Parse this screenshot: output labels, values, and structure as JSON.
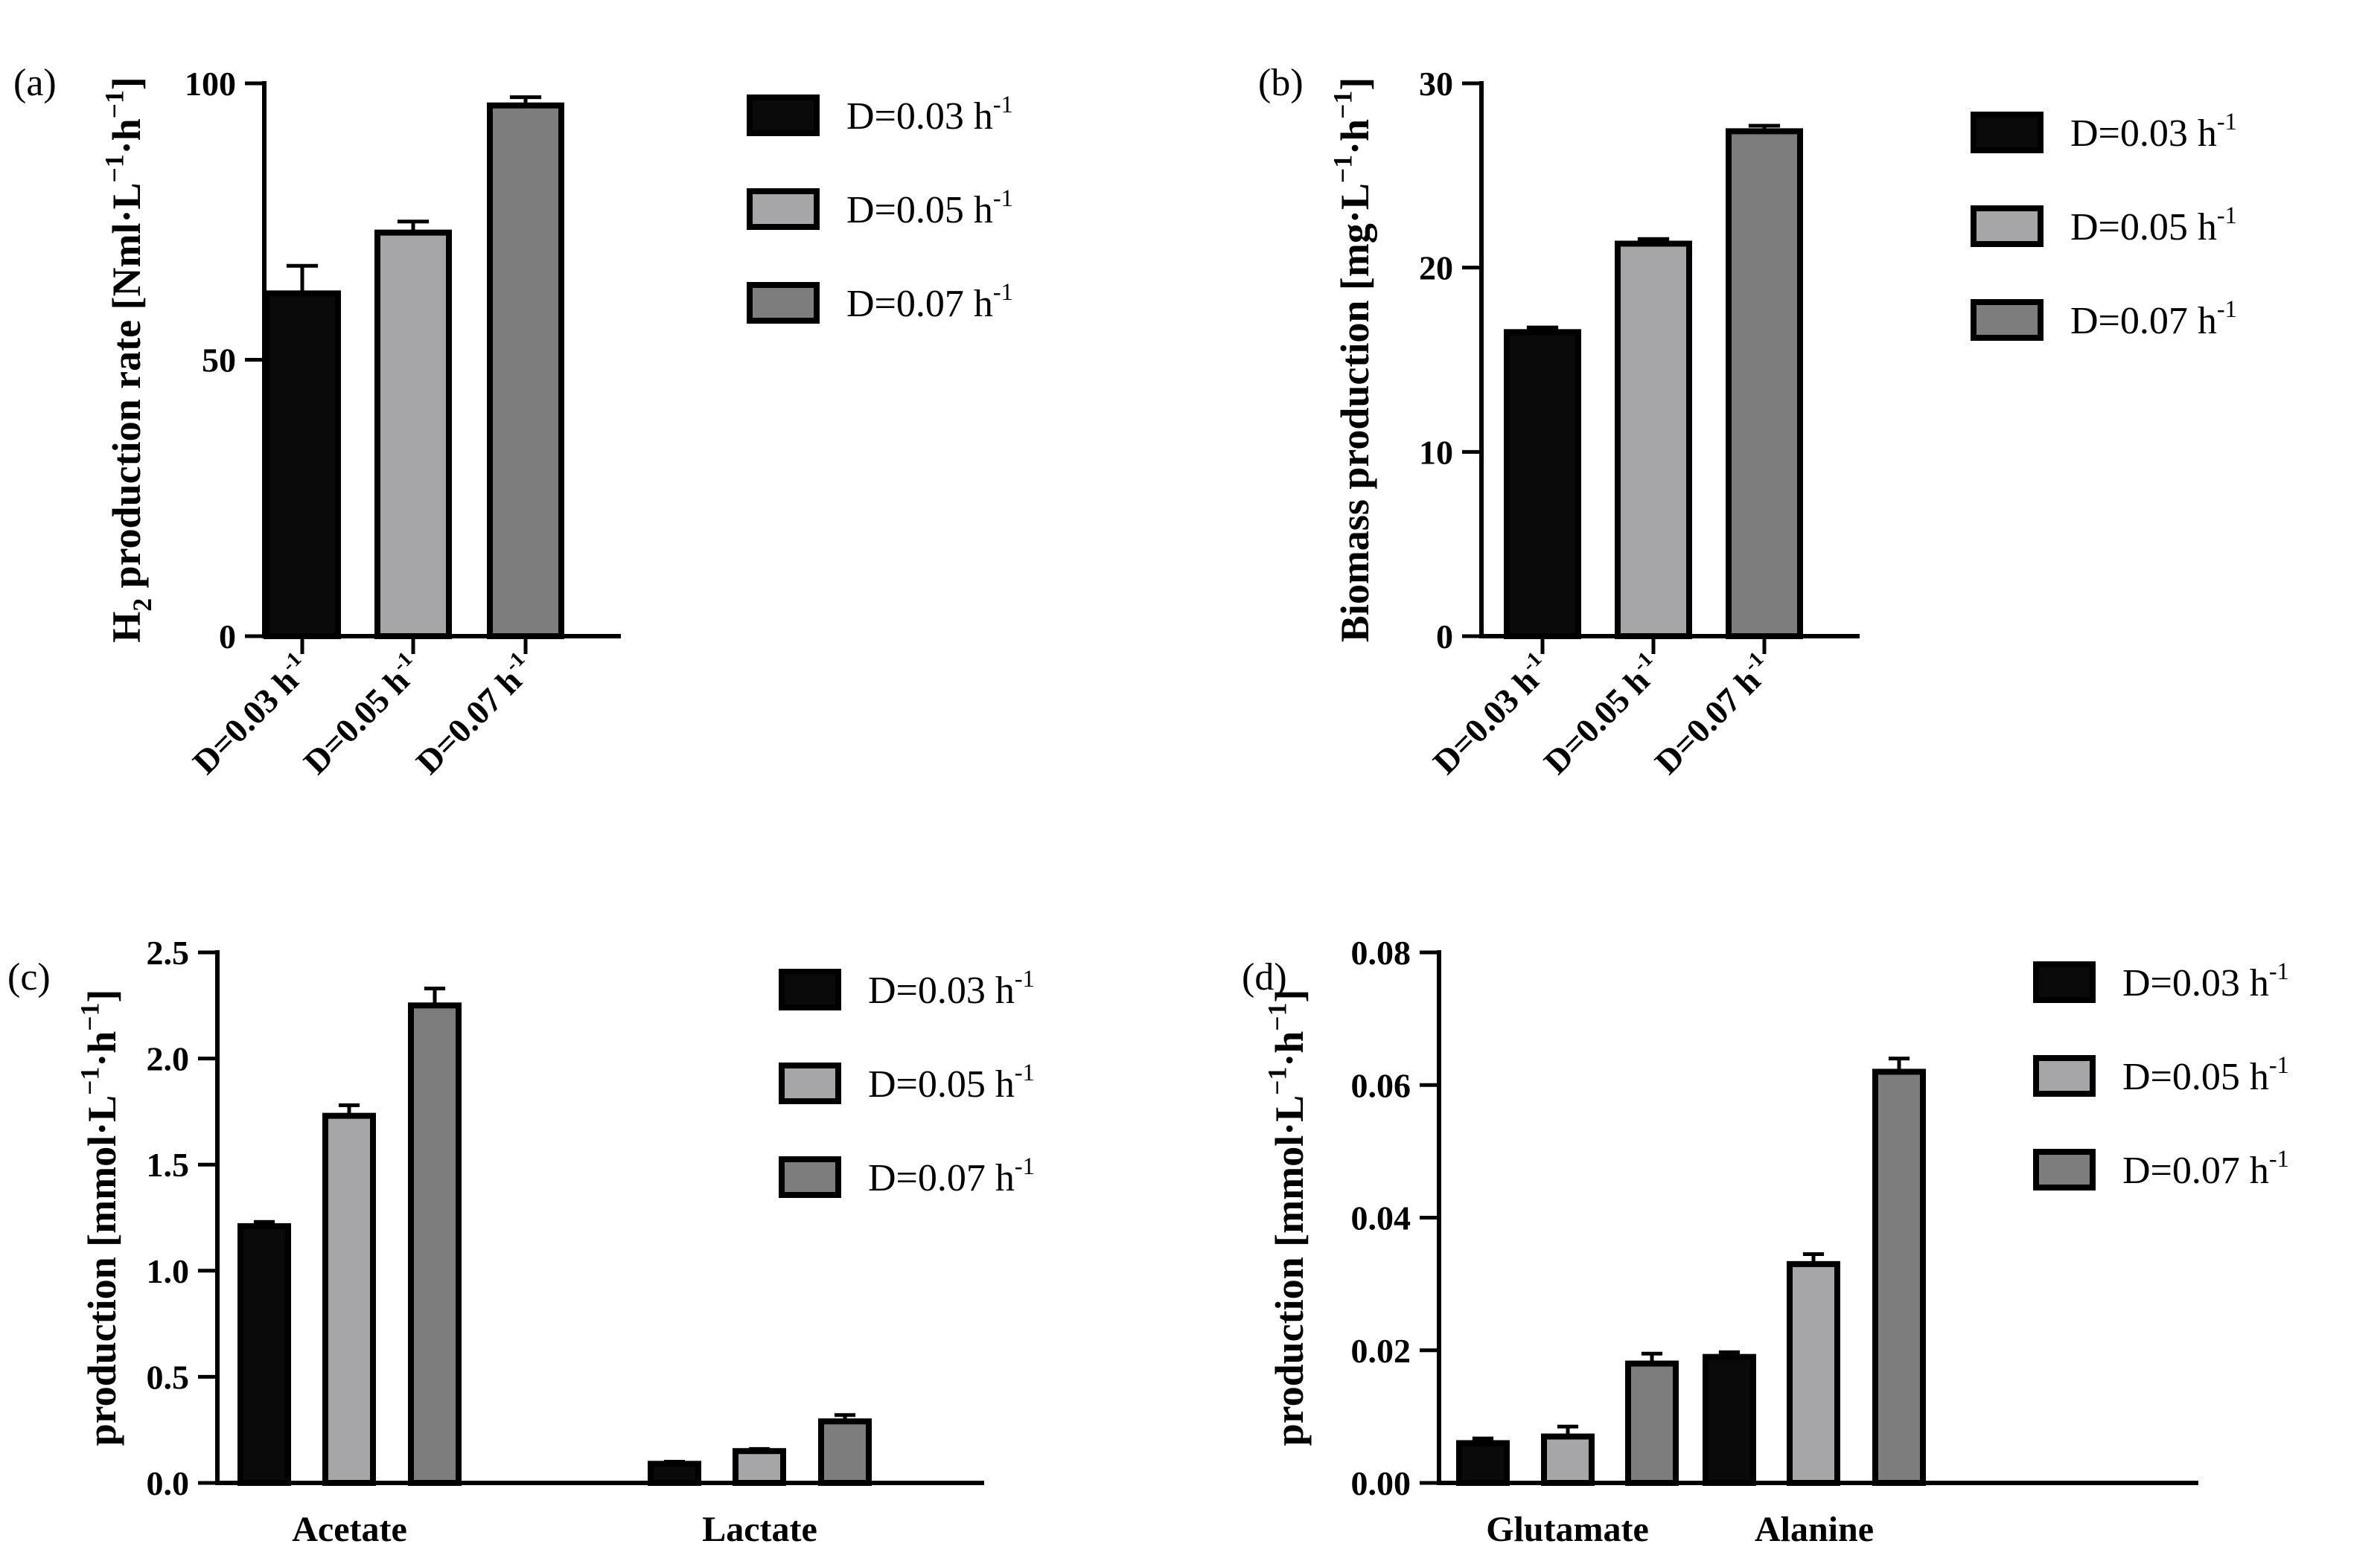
{
  "panels": [
    {
      "id": "a",
      "panel_label": "(a)",
      "legend": [
        {
          "base": "D=0.03 h",
          "sup": "-1",
          "color": "#0a0a0a"
        },
        {
          "base": "D=0.05 h",
          "sup": "-1",
          "color": "#a6a6a8"
        },
        {
          "base": "D=0.07 h",
          "sup": "-1",
          "color": "#7d7d7d"
        }
      ]
    },
    {
      "id": "b",
      "panel_label": "(b)",
      "legend": [
        {
          "base": "D=0.03 h",
          "sup": "-1",
          "color": "#0a0a0a"
        },
        {
          "base": "D=0.05 h",
          "sup": "-1",
          "color": "#a6a6a8"
        },
        {
          "base": "D=0.07 h",
          "sup": "-1",
          "color": "#7d7d7d"
        }
      ]
    },
    {
      "id": "c",
      "panel_label": "(c)",
      "legend": [
        {
          "base": "D=0.03 h",
          "sup": "-1",
          "color": "#0a0a0a"
        },
        {
          "base": "D=0.05 h",
          "sup": "-1",
          "color": "#a6a6a8"
        },
        {
          "base": "D=0.07 h",
          "sup": "-1",
          "color": "#7d7d7d"
        }
      ]
    },
    {
      "id": "d",
      "panel_label": "(d)",
      "legend": [
        {
          "base": "D=0.03 h",
          "sup": "-1",
          "color": "#0a0a0a"
        },
        {
          "base": "D=0.05 h",
          "sup": "-1",
          "color": "#a6a6a8"
        },
        {
          "base": "D=0.07 h",
          "sup": "-1",
          "color": "#7d7d7d"
        }
      ]
    }
  ],
  "chart_data": [
    {
      "type": "bar",
      "panel": "a",
      "ylabel": "H2 production rate [Nml·L-1·h-1]",
      "ylabel_parts": [
        {
          "t": "H"
        },
        {
          "t": "2",
          "s": "sub"
        },
        {
          "t": " production rate [Nml·L"
        },
        {
          "t": "−1",
          "s": "sup"
        },
        {
          "t": "·h"
        },
        {
          "t": "−1",
          "s": "sup"
        },
        {
          "t": "]"
        }
      ],
      "categories": [
        "D=0.03 h-1",
        "D=0.05 h-1",
        "D=0.07 h-1"
      ],
      "tick_labels": [
        {
          "base": "D=0.03 h",
          "sup": "-1"
        },
        {
          "base": "D=0.05 h",
          "sup": "-1"
        },
        {
          "base": "D=0.07 h",
          "sup": "-1"
        }
      ],
      "values": [
        62,
        73,
        96
      ],
      "errors": [
        5,
        2,
        1.5
      ],
      "ylim": [
        0,
        100
      ],
      "yticks": [
        0,
        50,
        100
      ],
      "ytick_labels": [
        "0",
        "50",
        "100"
      ],
      "legend": [
        "D=0.03 h-1",
        "D=0.05 h-1",
        "D=0.07 h-1"
      ]
    },
    {
      "type": "bar",
      "panel": "b",
      "ylabel": "Biomass production [mg·L-1·h-1]",
      "ylabel_parts": [
        {
          "t": "Biomass production [mg·L"
        },
        {
          "t": "−1",
          "s": "sup"
        },
        {
          "t": "·h"
        },
        {
          "t": "−1",
          "s": "sup"
        },
        {
          "t": "]"
        }
      ],
      "categories": [
        "D=0.03 h-1",
        "D=0.05 h-1",
        "D=0.07 h-1"
      ],
      "tick_labels": [
        {
          "base": "D=0.03 h",
          "sup": "-1"
        },
        {
          "base": "D=0.05 h",
          "sup": "-1"
        },
        {
          "base": "D=0.07 h",
          "sup": "-1"
        }
      ],
      "values": [
        16.5,
        21.3,
        27.4
      ],
      "errors": [
        0.25,
        0.25,
        0.3
      ],
      "ylim": [
        0,
        30
      ],
      "yticks": [
        0,
        10,
        20,
        30
      ],
      "ytick_labels": [
        "0",
        "10",
        "20",
        "30"
      ],
      "legend": [
        "D=0.03 h-1",
        "D=0.05 h-1",
        "D=0.07 h-1"
      ]
    },
    {
      "type": "bar",
      "panel": "c",
      "ylabel": "production [mmol·L-1·h-1]",
      "ylabel_parts": [
        {
          "t": "production [mmol·L"
        },
        {
          "t": "−1",
          "s": "sup"
        },
        {
          "t": "·h"
        },
        {
          "t": "−1",
          "s": "sup"
        },
        {
          "t": "]"
        }
      ],
      "categories": [
        "Acetate",
        "Lactate"
      ],
      "series": [
        {
          "name": "D=0.03 h-1",
          "values": [
            1.21,
            0.09
          ],
          "errors": [
            0.02,
            0.01
          ]
        },
        {
          "name": "D=0.05 h-1",
          "values": [
            1.73,
            0.15
          ],
          "errors": [
            0.05,
            0.01
          ]
        },
        {
          "name": "D=0.07 h-1",
          "values": [
            2.25,
            0.29
          ],
          "errors": [
            0.08,
            0.03
          ]
        }
      ],
      "ylim": [
        0,
        2.5
      ],
      "yticks": [
        0,
        0.5,
        1.0,
        1.5,
        2.0,
        2.5
      ],
      "ytick_labels": [
        "0.0",
        "0.5",
        "1.0",
        "1.5",
        "2.0",
        "2.5"
      ],
      "legend": [
        "D=0.03 h-1",
        "D=0.05 h-1",
        "D=0.07 h-1"
      ]
    },
    {
      "type": "bar",
      "panel": "d",
      "ylabel": "production [mmol·L-1·h-1]",
      "ylabel_parts": [
        {
          "t": "production [mmol·L"
        },
        {
          "t": "−1",
          "s": "sup"
        },
        {
          "t": "·h"
        },
        {
          "t": "−1",
          "s": "sup"
        },
        {
          "t": "]"
        }
      ],
      "categories": [
        "Glutamate",
        "Alanine"
      ],
      "series": [
        {
          "name": "D=0.03 h-1",
          "values": [
            0.006,
            0.019
          ],
          "errors": [
            0.0007,
            0.0007
          ]
        },
        {
          "name": "D=0.05 h-1",
          "values": [
            0.007,
            0.033
          ],
          "errors": [
            0.0015,
            0.0015
          ]
        },
        {
          "name": "D=0.07 h-1",
          "values": [
            0.018,
            0.062
          ],
          "errors": [
            0.0015,
            0.002
          ]
        }
      ],
      "ylim": [
        0,
        0.08
      ],
      "yticks": [
        0,
        0.02,
        0.04,
        0.06,
        0.08
      ],
      "ytick_labels": [
        "0.00",
        "0.02",
        "0.04",
        "0.06",
        "0.08"
      ],
      "legend": [
        "D=0.03 h-1",
        "D=0.05 h-1",
        "D=0.07 h-1"
      ]
    }
  ]
}
